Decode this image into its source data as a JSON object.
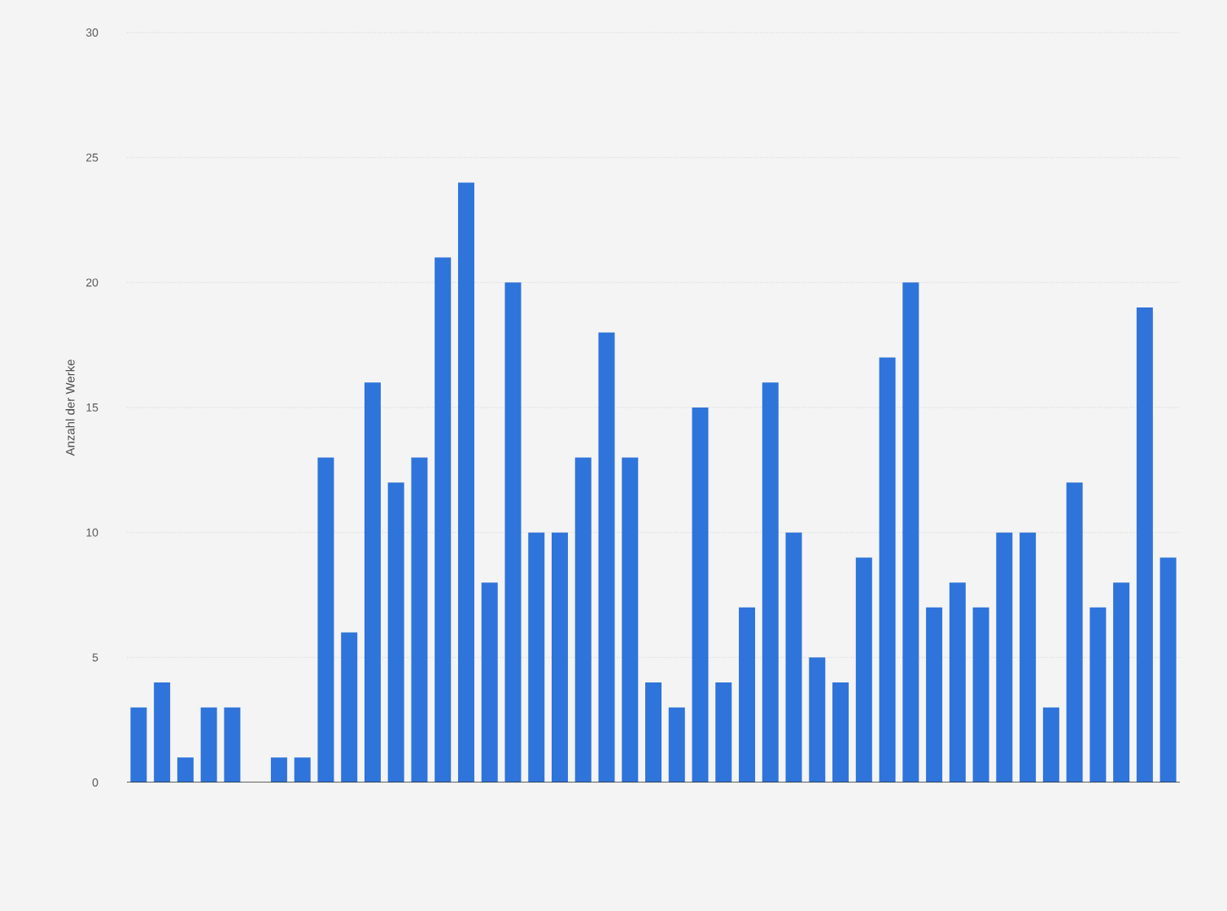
{
  "chart_data": {
    "type": "bar",
    "ylabel": "Anzahl der Werke",
    "categories": [
      null,
      null,
      null,
      null,
      null,
      null,
      null,
      null,
      null,
      null,
      null,
      null,
      null,
      null,
      null,
      null,
      null,
      null,
      null,
      null,
      null,
      null,
      null,
      null,
      null,
      null,
      null,
      null,
      null,
      null,
      null,
      null,
      null,
      null,
      null,
      null,
      null,
      null,
      null,
      null,
      null,
      null,
      null,
      null,
      null
    ],
    "values": [
      3,
      4,
      1,
      3,
      3,
      0,
      1,
      1,
      13,
      6,
      16,
      12,
      13,
      21,
      24,
      8,
      20,
      10,
      10,
      13,
      18,
      13,
      4,
      3,
      15,
      4,
      7,
      16,
      10,
      5,
      4,
      9,
      17,
      20,
      7,
      8,
      7,
      10,
      10,
      3,
      12,
      7,
      8,
      19,
      9
    ],
    "color": "#2f74da",
    "ylim": [
      0,
      30
    ],
    "yticks": [
      0,
      5,
      10,
      15,
      20,
      25,
      30
    ],
    "grid": "y",
    "tick_labels": "y"
  }
}
